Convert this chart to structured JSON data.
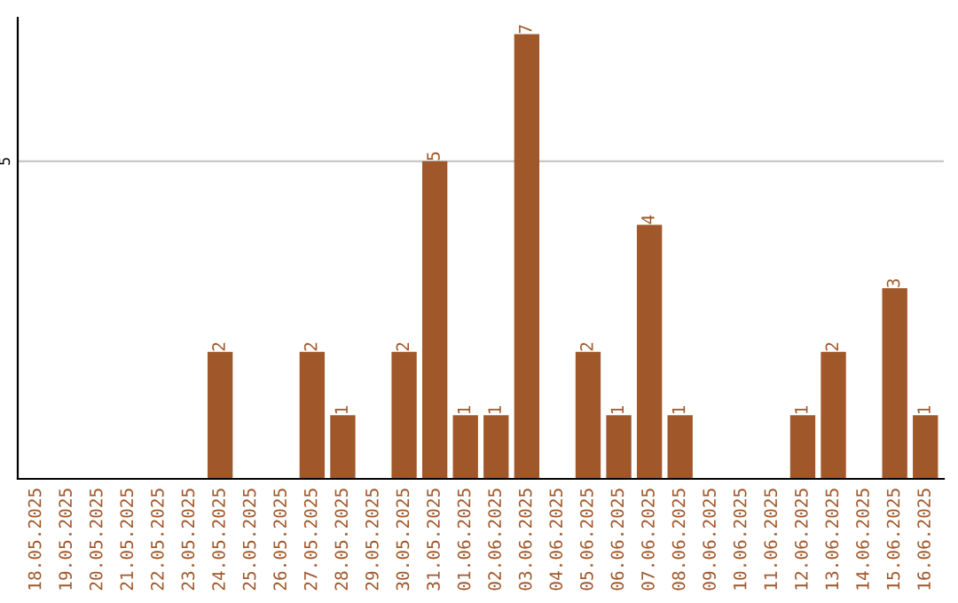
{
  "chart_data": {
    "type": "bar",
    "categories": [
      "18.05.2025",
      "19.05.2025",
      "20.05.2025",
      "21.05.2025",
      "22.05.2025",
      "23.05.2025",
      "24.05.2025",
      "25.05.2025",
      "26.05.2025",
      "27.05.2025",
      "28.05.2025",
      "29.05.2025",
      "30.05.2025",
      "31.05.2025",
      "01.06.2025",
      "02.06.2025",
      "03.06.2025",
      "04.06.2025",
      "05.06.2025",
      "06.06.2025",
      "07.06.2025",
      "08.06.2025",
      "09.06.2025",
      "10.06.2025",
      "11.06.2025",
      "12.06.2025",
      "13.06.2025",
      "14.06.2025",
      "15.06.2025",
      "16.06.2025"
    ],
    "values": [
      0,
      0,
      0,
      0,
      0,
      0,
      2,
      0,
      0,
      2,
      1,
      0,
      2,
      5,
      1,
      1,
      7,
      0,
      2,
      1,
      4,
      1,
      0,
      0,
      0,
      1,
      2,
      0,
      3,
      1
    ],
    "value_labels": [
      null,
      null,
      null,
      null,
      null,
      null,
      "2",
      null,
      null,
      "2",
      "1",
      null,
      "2",
      "5",
      "1",
      "1",
      "7",
      null,
      "2",
      "1",
      "4",
      "1",
      null,
      null,
      null,
      "1",
      "2",
      null,
      "3",
      "1"
    ],
    "color": "#a0572a",
    "ylim": [
      0,
      7.26
    ],
    "yticks": [
      5
    ],
    "grid": "y"
  }
}
